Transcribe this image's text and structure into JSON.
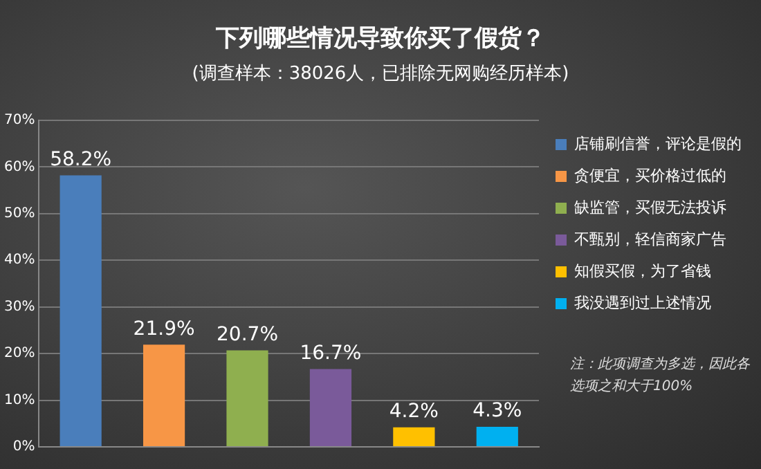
{
  "chart_data": {
    "type": "bar",
    "title": "下列哪些情况导致你买了假货？",
    "subtitle": "(调查样本：38026人，已排除无网购经历样本)",
    "categories": [
      null,
      null,
      null,
      null,
      null,
      null
    ],
    "series": [
      {
        "name": "店铺刷信誉，评论是假的",
        "color": "#4a7ebb",
        "values": [
          58.2,
          null,
          null,
          null,
          null,
          null
        ],
        "value_labels": [
          "58.2%",
          null,
          null,
          null,
          null,
          null
        ]
      },
      {
        "name": "贪便宜，买价格过低的",
        "color": "#f79646",
        "values": [
          null,
          21.9,
          null,
          null,
          null,
          null
        ],
        "value_labels": [
          null,
          "21.9%",
          null,
          null,
          null,
          null
        ]
      },
      {
        "name": "缺监管，买假无法投诉",
        "color": "#8faf4f",
        "values": [
          null,
          null,
          20.7,
          null,
          null,
          null
        ],
        "value_labels": [
          null,
          null,
          "20.7%",
          null,
          null,
          null
        ]
      },
      {
        "name": "不甄别，轻信商家广告",
        "color": "#7a5a9a",
        "values": [
          null,
          null,
          null,
          16.7,
          null,
          null
        ],
        "value_labels": [
          null,
          null,
          null,
          "16.7%",
          null,
          null
        ]
      },
      {
        "name": "知假买假，为了省钱",
        "color": "#ffc000",
        "values": [
          null,
          null,
          null,
          null,
          4.2,
          null
        ],
        "value_labels": [
          null,
          null,
          null,
          null,
          "4.2%",
          null
        ]
      },
      {
        "name": "我没遇到过上述情况",
        "color": "#00b0f0",
        "values": [
          null,
          null,
          null,
          null,
          null,
          4.3
        ],
        "value_labels": [
          null,
          null,
          null,
          null,
          null,
          "4.3%"
        ]
      }
    ],
    "ylim": [
      0,
      70
    ],
    "yticks": [
      {
        "value": 0,
        "label": "0%"
      },
      {
        "value": 10,
        "label": "10%"
      },
      {
        "value": 20,
        "label": "20%"
      },
      {
        "value": 30,
        "label": "30%"
      },
      {
        "value": 40,
        "label": "40%"
      },
      {
        "value": 50,
        "label": "50%"
      },
      {
        "value": 60,
        "label": "60%"
      },
      {
        "value": 70,
        "label": "70%"
      }
    ],
    "grid": "y",
    "legend": "right",
    "annotations": [
      "注：此项调查为多选，因此各选项之和大于100%"
    ]
  }
}
